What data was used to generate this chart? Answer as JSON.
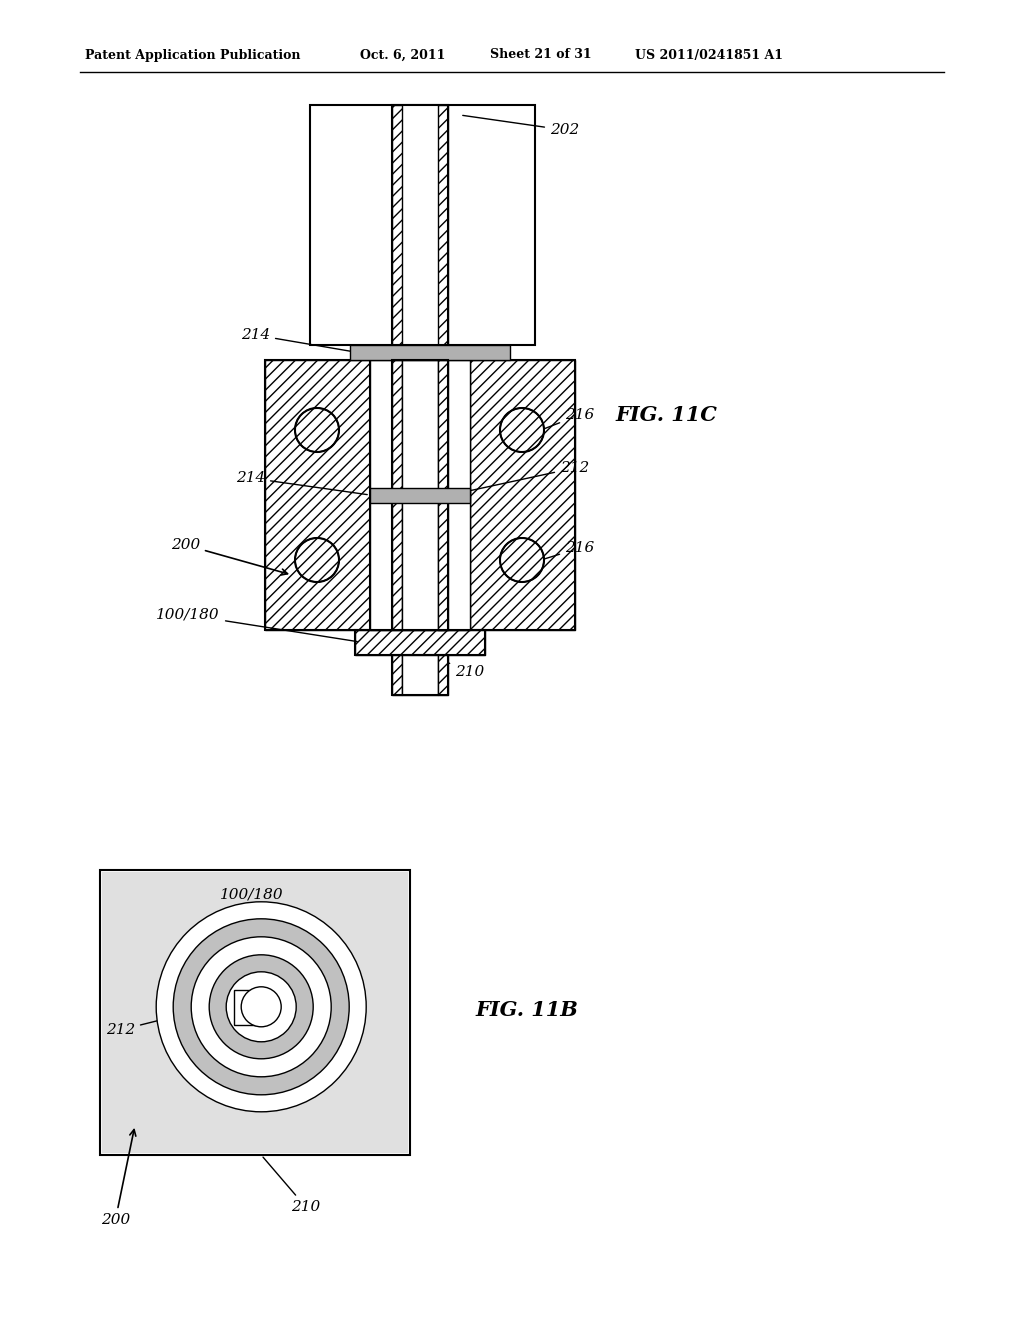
{
  "bg_color": "#ffffff",
  "header_text": "Patent Application Publication",
  "header_date": "Oct. 6, 2011",
  "header_sheet": "Sheet 21 of 31",
  "header_patent": "US 2011/0241851 A1",
  "fig11c_label": "FIG. 11C",
  "fig11b_label": "FIG. 11B",
  "line_color": "#000000"
}
